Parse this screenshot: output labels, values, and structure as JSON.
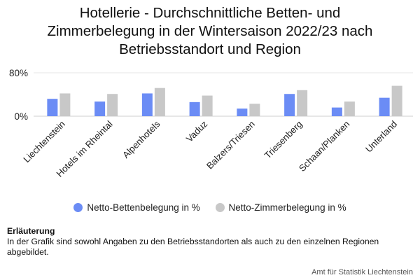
{
  "title_lines": [
    "Hotellerie - Durchschnittliche Betten- und",
    "Zimmerbelegung in der Wintersaison 2022/23 nach",
    "Betriebsstandort und Region"
  ],
  "legend": {
    "series1_label": "Netto-Bettenbelegung in %",
    "series2_label": "Netto-Zimmerbelegung in %"
  },
  "note": {
    "heading": "Erläuterung",
    "text": "In der Grafik sind sowohl Angaben zu den Betriebsstandorten als auch zu den einzelnen Regionen abgebildet."
  },
  "source": "Amt für Statistik Liechtenstein",
  "chart_data": {
    "type": "bar",
    "title": "Hotellerie - Durchschnittliche Betten- und Zimmerbelegung in der Wintersaison 2022/23 nach Betriebsstandort und Region",
    "categories": [
      "Liechtenstein",
      "Hotels im Rheintal",
      "Alpenhotels",
      "Vaduz",
      "Balzers/Triesen",
      "Triesenberg",
      "Schaan/Planken",
      "Unterland"
    ],
    "series": [
      {
        "name": "Netto-Bettenbelegung in %",
        "color": "#6b8cf5",
        "values": [
          32,
          27,
          42,
          26,
          14,
          41,
          16,
          34
        ]
      },
      {
        "name": "Netto-Zimmerbelegung in %",
        "color": "#c8c8c8",
        "values": [
          42,
          41,
          52,
          38,
          23,
          48,
          27,
          56
        ]
      }
    ],
    "yticks": [
      {
        "value": 0,
        "label": "0%"
      },
      {
        "value": 80,
        "label": "80%"
      }
    ],
    "ylim": [
      0,
      80
    ],
    "grid": true,
    "legend_position": "bottom"
  }
}
